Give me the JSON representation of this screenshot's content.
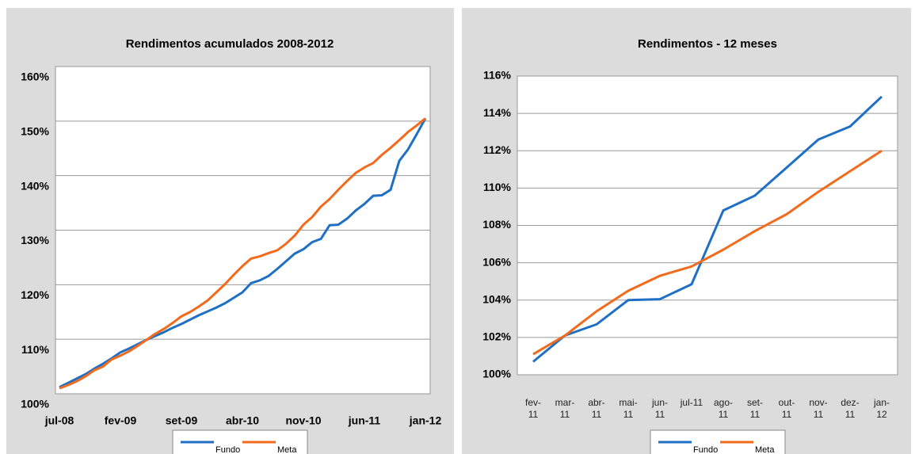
{
  "chart_data": [
    {
      "type": "line",
      "title": "Rendimentos acumulados 2008-2012",
      "categories": [
        "jul-08",
        null,
        null,
        null,
        null,
        null,
        null,
        "fev-09",
        null,
        null,
        null,
        null,
        null,
        null,
        "set-09",
        null,
        null,
        null,
        null,
        null,
        null,
        "abr-10",
        null,
        null,
        null,
        null,
        null,
        null,
        "nov-10",
        null,
        null,
        null,
        null,
        null,
        null,
        "jun-11",
        null,
        null,
        null,
        null,
        null,
        null,
        "jan-12"
      ],
      "series": [
        {
          "name": "Fundo",
          "color": "#1f6fc5",
          "values": [
            101.2,
            102.0,
            102.8,
            103.6,
            104.6,
            105.5,
            106.5,
            107.6,
            108.3,
            109.1,
            109.9,
            110.6,
            111.3,
            112.1,
            112.8,
            113.6,
            114.4,
            115.1,
            115.8,
            116.6,
            117.6,
            118.6,
            120.3,
            120.8,
            121.6,
            122.9,
            124.3,
            125.7,
            126.5,
            127.8,
            128.4,
            130.9,
            131.0,
            132.1,
            133.6,
            134.8,
            136.3,
            136.4,
            137.4,
            142.7,
            144.8,
            147.6,
            150.5
          ]
        },
        {
          "name": "Meta",
          "color": "#f26b1d",
          "values": [
            101.0,
            101.6,
            102.3,
            103.2,
            104.3,
            105.0,
            106.3,
            107.0,
            107.8,
            108.8,
            109.9,
            111.0,
            111.9,
            113.0,
            114.2,
            115.0,
            116.0,
            117.1,
            118.6,
            120.1,
            121.8,
            123.4,
            124.8,
            125.2,
            125.8,
            126.3,
            127.5,
            129.0,
            131.0,
            132.4,
            134.3,
            135.7,
            137.4,
            139.0,
            140.5,
            141.5,
            142.3,
            143.8,
            145.1,
            146.5,
            148.0,
            149.2,
            150.5
          ]
        }
      ],
      "ylim": [
        100,
        160
      ],
      "yticks": [
        {
          "value": 100,
          "label": "100%"
        },
        {
          "value": 110,
          "label": "110%"
        },
        {
          "value": 120,
          "label": "120%"
        },
        {
          "value": 130,
          "label": "130%"
        },
        {
          "value": 140,
          "label": "140%"
        },
        {
          "value": 150,
          "label": "150%"
        },
        {
          "value": 160,
          "label": "160%"
        }
      ],
      "grid": true,
      "legend": "bottom"
    },
    {
      "type": "line",
      "title": "Rendimentos - 12 meses",
      "categories": [
        "fev-11",
        "mar-11",
        "abr-11",
        "mai-11",
        "jun-11",
        "jul-11",
        "ago-11",
        "set-11",
        "out-11",
        "nov-11",
        "dez-11",
        "jan-12"
      ],
      "series": [
        {
          "name": "Fundo",
          "color": "#1f6fc5",
          "values": [
            100.7,
            102.1,
            102.7,
            104.0,
            104.05,
            104.85,
            108.8,
            109.6,
            111.1,
            112.6,
            113.3,
            114.9
          ]
        },
        {
          "name": "Meta",
          "color": "#f26b1d",
          "values": [
            101.1,
            102.1,
            103.4,
            104.5,
            105.3,
            105.8,
            106.7,
            107.7,
            108.6,
            109.8,
            110.9,
            112.0
          ]
        }
      ],
      "ylim": [
        100,
        116
      ],
      "yticks": [
        {
          "value": 100,
          "label": "100%"
        },
        {
          "value": 102,
          "label": "102%"
        },
        {
          "value": 104,
          "label": "104%"
        },
        {
          "value": 106,
          "label": "106%"
        },
        {
          "value": 108,
          "label": "108%"
        },
        {
          "value": 110,
          "label": "110%"
        },
        {
          "value": 112,
          "label": "112%"
        },
        {
          "value": 114,
          "label": "114%"
        },
        {
          "value": 116,
          "label": "116%"
        }
      ],
      "grid": true,
      "legend": "bottom"
    }
  ]
}
